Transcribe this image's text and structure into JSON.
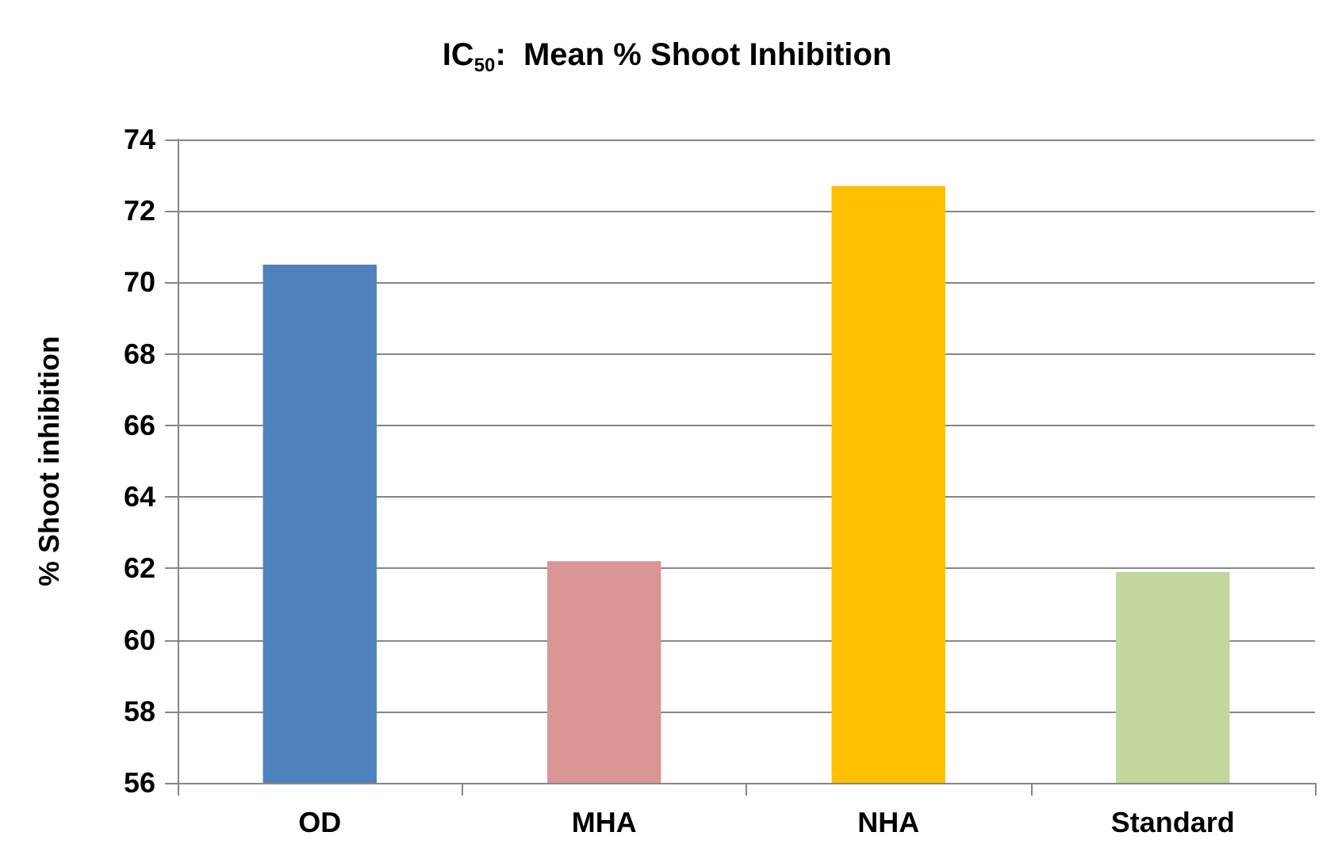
{
  "chart_data": {
    "type": "bar",
    "title": "IC$_{50}$:  Mean % Shoot Inhibition",
    "ylabel": "% Shoot inhibition",
    "categories": [
      "OD",
      "MHA",
      "NHA",
      "Standard"
    ],
    "values": [
      70.5,
      62.2,
      72.7,
      61.9
    ],
    "colors": [
      "#4f81bd",
      "#d99694",
      "#ffc000",
      "#c3d69b"
    ],
    "ylim": [
      56,
      74
    ],
    "yticks": [
      56,
      58,
      60,
      62,
      64,
      66,
      68,
      70,
      72,
      74
    ],
    "grid": "y"
  }
}
